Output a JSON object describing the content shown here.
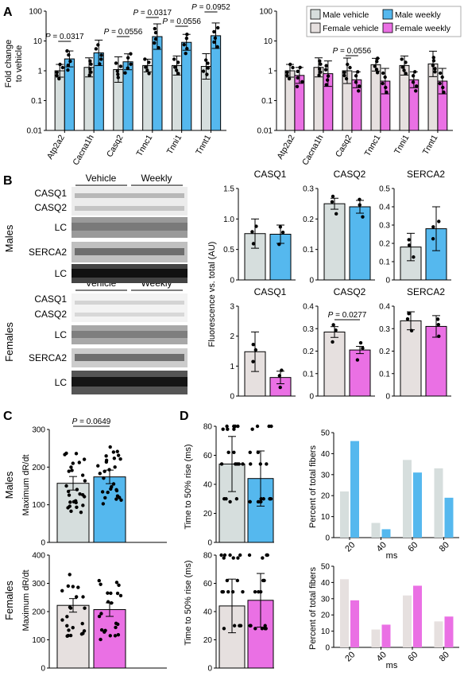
{
  "colors": {
    "male_vehicle": "#d6dedd",
    "male_weekly": "#55b8ee",
    "female_vehicle": "#e6e0df",
    "female_weekly": "#ea70e4",
    "axis": "#000000"
  },
  "panels": {
    "A": "A",
    "B": "B",
    "C": "C",
    "D": "D"
  },
  "legend": {
    "male_vehicle": "Male vehicle",
    "male_weekly": "Male weekly",
    "female_vehicle": "Female vehicle",
    "female_weekly": "Female weekly"
  },
  "panel_a": {
    "ylabel_line1": "Fold change",
    "ylabel_line2": "to vehicle",
    "yticks": [
      "100",
      "10",
      "1",
      "0.1",
      "0.01"
    ],
    "genes": [
      "Atp2a2",
      "Cacna1h",
      "Casq2",
      "Tnnc1",
      "Tnni1",
      "Tnnt1"
    ],
    "male_pvalues": [
      {
        "text": "P = 0.0317"
      },
      {
        "text": "P = 0.0556"
      },
      {
        "text": "P = 0.0317"
      },
      {
        "text": "P = 0.0556"
      },
      {
        "text": "P = 0.0952"
      }
    ],
    "female_pvalues": [
      {
        "text": "P = 0.0556"
      }
    ]
  },
  "panel_b": {
    "row_males": "Males",
    "row_females": "Females",
    "col_vehicle": "Vehicle",
    "col_weekly": "Weekly",
    "male_blot_labels": [
      "CASQ1",
      "CASQ2",
      "LC",
      "SERCA2",
      "LC"
    ],
    "female_blot_labels": [
      "CASQ1",
      "CASQ2",
      "LC",
      "SERCA2",
      "LC"
    ],
    "ylabel": "Fluorescence vs. total (AU)",
    "pvalue": "P = 0.0277"
  },
  "panel_c": {
    "row_males": "Males",
    "row_females": "Females",
    "ylabel": "Maximum dR/dt",
    "pvalue": "P = 0.0649"
  },
  "panel_d": {
    "ylabel_time": "Time to 50% rise (ms)",
    "ylabel_pct": "Percent of total fibers",
    "xlabel": "ms"
  },
  "chart_data": [
    {
      "id": "A-male",
      "type": "bar",
      "log_scale": true,
      "ylim": [
        0.01,
        100
      ],
      "ylabel": "Fold change to vehicle",
      "categories": [
        "Atp2a2",
        "Cacna1h",
        "Casq2",
        "Tnnc1",
        "Tnni1",
        "Tnnt1"
      ],
      "series": [
        {
          "name": "Male vehicle",
          "values": [
            1.0,
            1.3,
            1.1,
            1.5,
            1.5,
            1.4
          ]
        },
        {
          "name": "Male weekly",
          "values": [
            2.5,
            4.0,
            2.0,
            14,
            9,
            15
          ]
        }
      ]
    },
    {
      "id": "A-female",
      "type": "bar",
      "log_scale": true,
      "ylim": [
        0.01,
        100
      ],
      "categories": [
        "Atp2a2",
        "Cacna1h",
        "Casq2",
        "Tnnc1",
        "Tnni1",
        "Tnnt1"
      ],
      "series": [
        {
          "name": "Female vehicle",
          "values": [
            1.0,
            1.3,
            1.0,
            1.6,
            1.5,
            1.7
          ]
        },
        {
          "name": "Female weekly",
          "values": [
            0.7,
            0.8,
            0.5,
            0.45,
            0.5,
            0.45
          ]
        }
      ]
    },
    {
      "id": "B-male-CASQ1",
      "type": "bar",
      "title": "CASQ1",
      "ylim": [
        0,
        1.5
      ],
      "yticks": [
        "0",
        "0.5",
        "1.0",
        "1.5"
      ],
      "categories": [
        "Vehicle",
        "Weekly"
      ],
      "values": [
        0.76,
        0.75
      ]
    },
    {
      "id": "B-male-CASQ2",
      "type": "bar",
      "title": "CASQ2",
      "ylim": [
        0,
        0.3
      ],
      "yticks": [
        "0",
        "0.1",
        "0.2",
        "0.3"
      ],
      "categories": [
        "Vehicle",
        "Weekly"
      ],
      "values": [
        0.25,
        0.24
      ]
    },
    {
      "id": "B-male-SERCA2",
      "type": "bar",
      "title": "SERCA2",
      "ylim": [
        0,
        0.5
      ],
      "yticks": [
        "0",
        "0.1",
        "0.2",
        "0.3",
        "0.4",
        "0.5"
      ],
      "categories": [
        "Vehicle",
        "Weekly"
      ],
      "values": [
        0.18,
        0.28
      ]
    },
    {
      "id": "B-female-CASQ1",
      "type": "bar",
      "title": "CASQ1",
      "ylim": [
        0,
        3
      ],
      "yticks": [
        "0",
        "1",
        "2",
        "3"
      ],
      "categories": [
        "Vehicle",
        "Weekly"
      ],
      "values": [
        1.48,
        0.62
      ]
    },
    {
      "id": "B-female-CASQ2",
      "type": "bar",
      "title": "CASQ2",
      "ylim": [
        0,
        0.4
      ],
      "yticks": [
        "0",
        "0.1",
        "0.2",
        "0.3",
        "0.4"
      ],
      "categories": [
        "Vehicle",
        "Weekly"
      ],
      "values": [
        0.285,
        0.205
      ]
    },
    {
      "id": "B-female-SERCA2",
      "type": "bar",
      "title": "SERCA2",
      "ylim": [
        0,
        0.4
      ],
      "yticks": [
        "0",
        "0.1",
        "0.2",
        "0.3",
        "0.4"
      ],
      "categories": [
        "Vehicle",
        "Weekly"
      ],
      "values": [
        0.335,
        0.31
      ]
    },
    {
      "id": "C-male",
      "type": "bar",
      "ylabel": "Maximum dR/dt",
      "ylim": [
        0,
        300
      ],
      "yticks": [
        "0",
        "100",
        "200",
        "300"
      ],
      "categories": [
        "Vehicle",
        "Weekly"
      ],
      "values": [
        157,
        174
      ]
    },
    {
      "id": "C-female",
      "type": "bar",
      "ylabel": "Maximum dR/dt",
      "ylim": [
        0,
        400
      ],
      "yticks": [
        "0",
        "100",
        "200",
        "300",
        "400"
      ],
      "categories": [
        "Vehicle",
        "Weekly"
      ],
      "values": [
        222,
        207
      ]
    },
    {
      "id": "D-male-time",
      "type": "bar",
      "ylabel": "Time to 50% rise (ms)",
      "ylim": [
        0,
        80
      ],
      "yticks": [
        "0",
        "20",
        "40",
        "60",
        "80"
      ],
      "categories": [
        "Vehicle",
        "Weekly"
      ],
      "values": [
        54,
        44
      ]
    },
    {
      "id": "D-female-time",
      "type": "bar",
      "ylabel": "Time to 50% rise (ms)",
      "ylim": [
        0,
        80
      ],
      "yticks": [
        "0",
        "20",
        "40",
        "60",
        "80"
      ],
      "categories": [
        "Vehicle",
        "Weekly"
      ],
      "values": [
        44,
        48
      ]
    },
    {
      "id": "D-male-hist",
      "type": "bar",
      "ylabel": "Percent of total fibers",
      "xlabel": "ms",
      "ylim": [
        0,
        50
      ],
      "yticks": [
        "0",
        "10",
        "20",
        "30",
        "40",
        "50"
      ],
      "categories": [
        "20",
        "40",
        "60",
        "80"
      ],
      "series": [
        {
          "name": "Male vehicle",
          "values": [
            22,
            7,
            37,
            33
          ]
        },
        {
          "name": "Male weekly",
          "values": [
            46,
            4,
            31,
            19
          ]
        }
      ]
    },
    {
      "id": "D-female-hist",
      "type": "bar",
      "ylabel": "Percent of total fibers",
      "xlabel": "ms",
      "ylim": [
        0,
        50
      ],
      "yticks": [
        "0",
        "10",
        "20",
        "30",
        "40",
        "50"
      ],
      "categories": [
        "20",
        "40",
        "60",
        "80"
      ],
      "series": [
        {
          "name": "Female vehicle",
          "values": [
            42,
            11,
            32,
            16
          ]
        },
        {
          "name": "Female weekly",
          "values": [
            29,
            14,
            38,
            19
          ]
        }
      ]
    }
  ]
}
